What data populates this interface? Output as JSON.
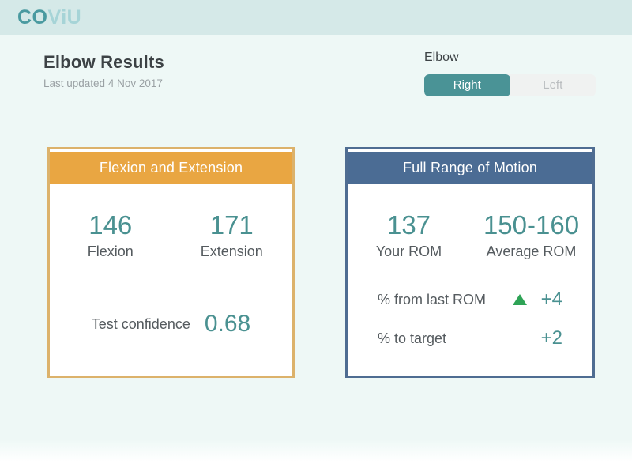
{
  "brand": {
    "logo_part1": "CO",
    "logo_part2": "ViU"
  },
  "page": {
    "title": "Elbow Results",
    "subtitle": "Last updated 4 Nov 2017"
  },
  "joint_selector": {
    "label": "Elbow",
    "options": [
      {
        "label": "Right",
        "selected": true
      },
      {
        "label": "Left",
        "selected": false
      }
    ]
  },
  "cards": {
    "flexion_extension": {
      "title": "Flexion and Extension",
      "metrics": [
        {
          "value": "146",
          "label": "Flexion"
        },
        {
          "value": "171",
          "label": "Extension"
        }
      ],
      "confidence": {
        "label": "Test confidence",
        "value": "0.68"
      }
    },
    "full_rom": {
      "title": "Full Range of Motion",
      "metrics": [
        {
          "value": "137",
          "label": "Your ROM"
        },
        {
          "value": "150-160",
          "label": "Average ROM"
        }
      ],
      "deltas": [
        {
          "label": "% from last ROM",
          "value": "+4",
          "trend": "up",
          "trend_icon": "triangle-up-icon"
        },
        {
          "label": "% to target",
          "value": "+2",
          "trend": "none",
          "trend_icon": ""
        }
      ]
    }
  },
  "colors": {
    "brand_dark": "#4A9AA0",
    "brand_light": "#A6D4D7",
    "topbar_bg": "#D5E9E8",
    "page_bg": "#EEF8F6",
    "teal_value": "#4A9191",
    "toggle_active": "#4A9396",
    "trend_up_green": "#2EA356",
    "flexion_accent": "#E9A642",
    "flexion_border": "#DCB26B",
    "rom_accent": "#4B6C94",
    "rom_border": "#4F6D92"
  }
}
